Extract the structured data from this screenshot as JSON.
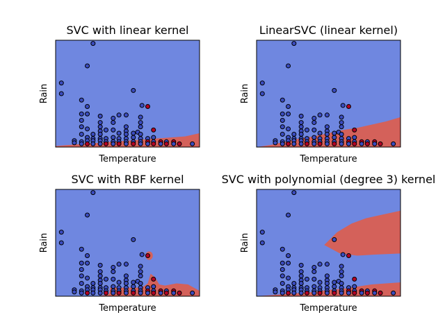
{
  "chart_data": [
    {
      "type": "scatter",
      "title": "SVC with linear kernel",
      "xlabel": "Temperature",
      "ylabel": "Rain",
      "xticks": "none",
      "yticks": "none",
      "grid": false,
      "colors": {
        "class_0_region": "#6f87e0",
        "class_1_region": "#d4615a",
        "class_0_point": "#3b4cc0",
        "class_1_point": "#b40426",
        "edge": "#000000"
      },
      "decision_region_class_1": {
        "kind": "band",
        "boundary_x": [
          0,
          10,
          20,
          30,
          40,
          50,
          60,
          70,
          80,
          90,
          100
        ],
        "boundary_y": [
          1.0,
          2.0,
          3.0,
          4.0,
          5.0,
          6.0,
          7.0,
          8.0,
          9.0,
          10.0,
          13.0
        ]
      }
    },
    {
      "type": "scatter",
      "title": "LinearSVC (linear kernel)",
      "xlabel": "Temperature",
      "ylabel": "Rain",
      "xticks": "none",
      "yticks": "none",
      "grid": false,
      "decision_region_class_1": {
        "kind": "band",
        "boundary_x": [
          0,
          10,
          20,
          30,
          40,
          50,
          60,
          70,
          80,
          90,
          100
        ],
        "boundary_y": [
          0.0,
          2.0,
          5.0,
          8.0,
          10.0,
          13.0,
          16.0,
          18.0,
          21.0,
          24.0,
          28.0
        ]
      }
    },
    {
      "type": "scatter",
      "title": "SVC with RBF kernel",
      "xlabel": "Temperature",
      "ylabel": "Rain",
      "xticks": "none",
      "yticks": "none",
      "grid": false,
      "decision_region_class_1": {
        "kind": "band",
        "boundary_x": [
          0,
          30,
          37,
          38,
          60,
          64,
          66,
          69,
          72,
          76,
          84,
          92,
          100
        ],
        "boundary_y": [
          0.0,
          0.0,
          2.0,
          8.0,
          8.0,
          12.0,
          21.0,
          18.0,
          11.0,
          10.0,
          12.0,
          11.0,
          5.0
        ]
      },
      "decision_region_island": {
        "cx": 65.0,
        "cy": 38.0,
        "rx": 2.5,
        "ry": 4.0
      }
    },
    {
      "type": "scatter",
      "title": "SVC with polynomial (degree 3) kernel",
      "xlabel": "Temperature",
      "ylabel": "Rain",
      "xticks": "none",
      "yticks": "none",
      "grid": false,
      "decision_region_class_1": {
        "kind": "band",
        "boundary_x": [
          0,
          10,
          20,
          30,
          40,
          50,
          60,
          70,
          80,
          90,
          100
        ],
        "boundary_y": [
          0.0,
          1.0,
          2.0,
          3.0,
          4.0,
          6.0,
          7.0,
          9.0,
          11.0,
          12.0,
          13.0
        ]
      },
      "decision_region_polynomial": {
        "tip_x": 47.0,
        "tip_y": 48.0,
        "upper_x": [
          47,
          56,
          66,
          76,
          86,
          100
        ],
        "upper_y": [
          48,
          60,
          68,
          73,
          76,
          80
        ],
        "lower_x": [
          47,
          58,
          70,
          82,
          100
        ],
        "lower_y": [
          48,
          40,
          38,
          39,
          40
        ]
      }
    }
  ],
  "points": [
    {
      "x": 26,
      "y": 97,
      "c": 0
    },
    {
      "x": 22,
      "y": 76,
      "c": 0
    },
    {
      "x": 4,
      "y": 60,
      "c": 0
    },
    {
      "x": 4,
      "y": 50,
      "c": 0
    },
    {
      "x": 18,
      "y": 44,
      "c": 0
    },
    {
      "x": 54,
      "y": 53,
      "c": 0
    },
    {
      "x": 60,
      "y": 39,
      "c": 0
    },
    {
      "x": 64,
      "y": 38,
      "c": 1
    },
    {
      "x": 22,
      "y": 38,
      "c": 0
    },
    {
      "x": 18,
      "y": 31,
      "c": 0
    },
    {
      "x": 22,
      "y": 31,
      "c": 0
    },
    {
      "x": 31,
      "y": 29,
      "c": 0
    },
    {
      "x": 44,
      "y": 30,
      "c": 0
    },
    {
      "x": 49,
      "y": 30,
      "c": 0
    },
    {
      "x": 40,
      "y": 27,
      "c": 0
    },
    {
      "x": 59,
      "y": 28,
      "c": 0
    },
    {
      "x": 18,
      "y": 25,
      "c": 0
    },
    {
      "x": 31,
      "y": 23,
      "c": 0
    },
    {
      "x": 40,
      "y": 23,
      "c": 0
    },
    {
      "x": 59,
      "y": 23,
      "c": 0
    },
    {
      "x": 18,
      "y": 19,
      "c": 0
    },
    {
      "x": 31,
      "y": 19,
      "c": 0
    },
    {
      "x": 49,
      "y": 19,
      "c": 0
    },
    {
      "x": 59,
      "y": 19,
      "c": 0
    },
    {
      "x": 22,
      "y": 17,
      "c": 0
    },
    {
      "x": 31,
      "y": 15,
      "c": 0
    },
    {
      "x": 35,
      "y": 16,
      "c": 0
    },
    {
      "x": 40,
      "y": 16,
      "c": 0
    },
    {
      "x": 49,
      "y": 15,
      "c": 0
    },
    {
      "x": 57,
      "y": 14,
      "c": 0
    },
    {
      "x": 18,
      "y": 12,
      "c": 0
    },
    {
      "x": 26,
      "y": 12,
      "c": 0
    },
    {
      "x": 31,
      "y": 12,
      "c": 0
    },
    {
      "x": 44,
      "y": 13,
      "c": 0
    },
    {
      "x": 49,
      "y": 12,
      "c": 0
    },
    {
      "x": 54,
      "y": 13,
      "c": 0
    },
    {
      "x": 59,
      "y": 12,
      "c": 0
    },
    {
      "x": 68,
      "y": 16,
      "c": 1
    },
    {
      "x": 22,
      "y": 9,
      "c": 0
    },
    {
      "x": 26,
      "y": 8,
      "c": 0
    },
    {
      "x": 31,
      "y": 8,
      "c": 0
    },
    {
      "x": 35,
      "y": 8,
      "c": 0
    },
    {
      "x": 40,
      "y": 9,
      "c": 0
    },
    {
      "x": 44,
      "y": 8,
      "c": 0
    },
    {
      "x": 49,
      "y": 8,
      "c": 0
    },
    {
      "x": 54,
      "y": 9,
      "c": 0
    },
    {
      "x": 59,
      "y": 8,
      "c": 0
    },
    {
      "x": 64,
      "y": 8,
      "c": 0
    },
    {
      "x": 68,
      "y": 9,
      "c": 0
    },
    {
      "x": 13,
      "y": 6,
      "c": 0
    },
    {
      "x": 13,
      "y": 4,
      "c": 0
    },
    {
      "x": 18,
      "y": 5,
      "c": 0
    },
    {
      "x": 18,
      "y": 3,
      "c": 0
    },
    {
      "x": 22,
      "y": 6,
      "c": 0
    },
    {
      "x": 22,
      "y": 3,
      "c": 1
    },
    {
      "x": 26,
      "y": 6,
      "c": 0
    },
    {
      "x": 26,
      "y": 3,
      "c": 0
    },
    {
      "x": 31,
      "y": 6,
      "c": 0
    },
    {
      "x": 31,
      "y": 3,
      "c": 0
    },
    {
      "x": 35,
      "y": 5,
      "c": 0
    },
    {
      "x": 35,
      "y": 3,
      "c": 1
    },
    {
      "x": 40,
      "y": 5,
      "c": 0
    },
    {
      "x": 40,
      "y": 3,
      "c": 0
    },
    {
      "x": 44,
      "y": 5,
      "c": 0
    },
    {
      "x": 44,
      "y": 3,
      "c": 1
    },
    {
      "x": 49,
      "y": 5,
      "c": 0
    },
    {
      "x": 49,
      "y": 3,
      "c": 0
    },
    {
      "x": 54,
      "y": 5,
      "c": 0
    },
    {
      "x": 54,
      "y": 3,
      "c": 1
    },
    {
      "x": 59,
      "y": 5,
      "c": 0
    },
    {
      "x": 59,
      "y": 3,
      "c": 0
    },
    {
      "x": 64,
      "y": 5,
      "c": 1
    },
    {
      "x": 64,
      "y": 3,
      "c": 0
    },
    {
      "x": 68,
      "y": 5,
      "c": 0
    },
    {
      "x": 68,
      "y": 3,
      "c": 1
    },
    {
      "x": 73,
      "y": 5,
      "c": 1
    },
    {
      "x": 73,
      "y": 3,
      "c": 0
    },
    {
      "x": 77,
      "y": 5,
      "c": 0
    },
    {
      "x": 77,
      "y": 3,
      "c": 1
    },
    {
      "x": 82,
      "y": 5,
      "c": 1
    },
    {
      "x": 82,
      "y": 3,
      "c": 0
    },
    {
      "x": 86,
      "y": 3,
      "c": 1
    },
    {
      "x": 95,
      "y": 3,
      "c": 0
    }
  ]
}
